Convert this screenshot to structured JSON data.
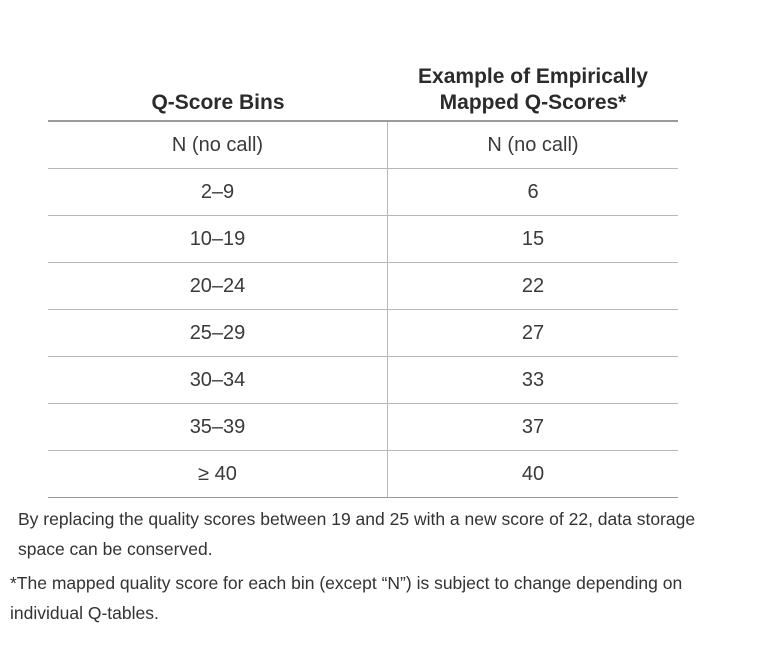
{
  "table": {
    "headers": {
      "bins": "Q-Score Bins",
      "mapped": "Example of Empirically\nMapped Q-Scores*"
    },
    "rows": [
      {
        "bin": "N (no call)",
        "mapped": "N (no call)"
      },
      {
        "bin": "2–9",
        "mapped": "6"
      },
      {
        "bin": "10–19",
        "mapped": "15"
      },
      {
        "bin": "20–24",
        "mapped": "22"
      },
      {
        "bin": "25–29",
        "mapped": "27"
      },
      {
        "bin": "30–34",
        "mapped": "33"
      },
      {
        "bin": "35–39",
        "mapped": "37"
      },
      {
        "bin": "≥ 40",
        "mapped": "40"
      }
    ]
  },
  "notes": {
    "description": "By replacing the quality scores between 19 and 25 with a new score of 22, data storage space can be conserved.",
    "footnote": "*The mapped quality score for each bin (except “N”) is subject to change depending on individual Q-tables."
  }
}
